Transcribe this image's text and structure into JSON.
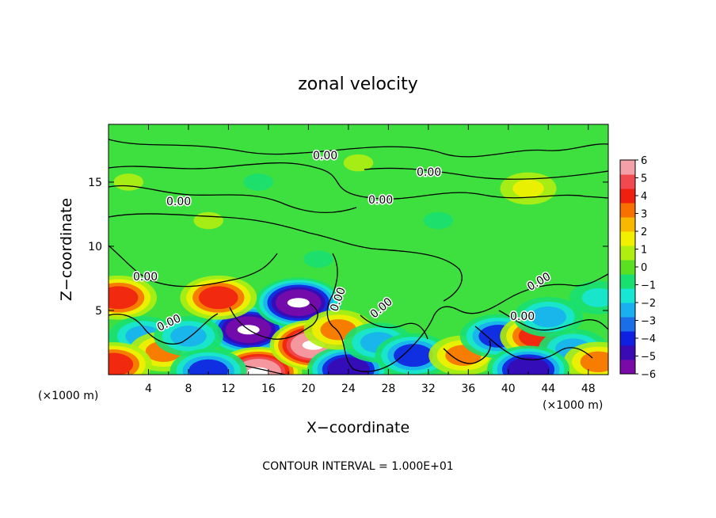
{
  "chart_data": {
    "type": "heatmap",
    "title": "zonal velocity",
    "xlabel": "X−coordinate",
    "ylabel": "Z−coordinate",
    "x_unit_label_left": "(×1000 m)",
    "x_unit_label_right": "(×1000 m)",
    "footer": "CONTOUR INTERVAL = 1.000E+01",
    "xlim": [
      0,
      50
    ],
    "ylim": [
      0,
      19.5
    ],
    "xticks": [
      4,
      8,
      12,
      16,
      20,
      24,
      28,
      32,
      36,
      40,
      44,
      48
    ],
    "yticks": [
      5,
      10,
      15
    ],
    "xtick_labels": [
      "4",
      "8",
      "12",
      "16",
      "20",
      "24",
      "28",
      "32",
      "36",
      "40",
      "44",
      "48"
    ],
    "ytick_labels": [
      "5",
      "10",
      "15"
    ],
    "colorbar": {
      "min": -6,
      "max": 6,
      "tick_labels": [
        "6",
        "5",
        "4",
        "3",
        "2",
        "1",
        "0",
        "−1",
        "−2",
        "−3",
        "−4",
        "−5",
        "−6"
      ],
      "colors": [
        "#7a0aa8",
        "#3a0ab4",
        "#1020e0",
        "#1a6ee8",
        "#1ab0f0",
        "#18e6d4",
        "#18e070",
        "#5ae020",
        "#b0ee10",
        "#f2f000",
        "#f8b800",
        "#f87000",
        "#f02010",
        "#f04a50",
        "#f4a0a8"
      ]
    },
    "contour_labels": [
      "0.00",
      "0.00",
      "0.00",
      "0.00",
      "0.00",
      "0.00",
      "0.00",
      "0.00",
      "0.00"
    ],
    "blobs": [
      {
        "x": 14,
        "z": 3.5,
        "v": -6
      },
      {
        "x": 19,
        "z": 5.6,
        "v": -6
      },
      {
        "x": 15,
        "z": 0.2,
        "v": 6
      },
      {
        "x": 20.5,
        "z": 2.3,
        "v": 6
      },
      {
        "x": 24,
        "z": 0.4,
        "v": -5
      },
      {
        "x": 11,
        "z": 6,
        "v": 4
      },
      {
        "x": 1,
        "z": 6,
        "v": 4
      },
      {
        "x": 3.5,
        "z": 3,
        "v": -3
      },
      {
        "x": 5.5,
        "z": 1.8,
        "v": 3
      },
      {
        "x": 8,
        "z": 3,
        "v": -3
      },
      {
        "x": 10,
        "z": 0.3,
        "v": -4
      },
      {
        "x": 0.5,
        "z": 0.8,
        "v": 4
      },
      {
        "x": 23,
        "z": 3.5,
        "v": 3
      },
      {
        "x": 27,
        "z": 2.5,
        "v": -3
      },
      {
        "x": 30.5,
        "z": 1.5,
        "v": -4
      },
      {
        "x": 35.5,
        "z": 1.5,
        "v": 3
      },
      {
        "x": 39,
        "z": 3,
        "v": -4
      },
      {
        "x": 43,
        "z": 3,
        "v": 4
      },
      {
        "x": 46.5,
        "z": 2,
        "v": -3
      },
      {
        "x": 49,
        "z": 1,
        "v": 3
      },
      {
        "x": 42,
        "z": 0.4,
        "v": -5
      },
      {
        "x": 44,
        "z": 4.5,
        "v": -3
      },
      {
        "x": 49,
        "z": 6,
        "v": -2
      },
      {
        "x": 21,
        "z": 9,
        "v": -1
      },
      {
        "x": 10,
        "z": 12,
        "v": 1
      },
      {
        "x": 25,
        "z": 16.5,
        "v": 1
      },
      {
        "x": 42,
        "z": 14.5,
        "v": 1.5
      },
      {
        "x": 2,
        "z": 15,
        "v": 1
      },
      {
        "x": 33,
        "z": 12,
        "v": -1
      },
      {
        "x": 15,
        "z": 15,
        "v": -1
      }
    ]
  }
}
